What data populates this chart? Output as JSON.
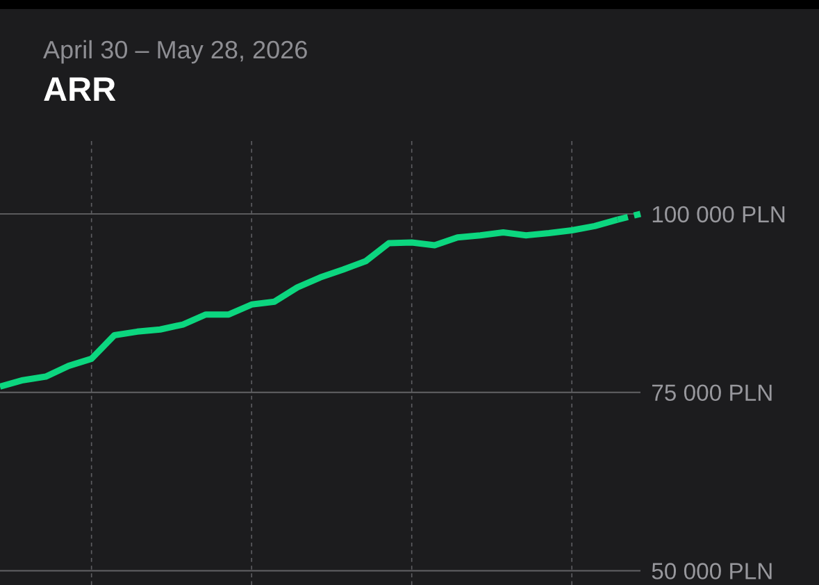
{
  "chart_data": {
    "type": "line",
    "title": "ARR",
    "subtitle": "April 30 – May 28, 2026",
    "categories": [
      null,
      null,
      null,
      null,
      null,
      null,
      null,
      null,
      null,
      null,
      null,
      null,
      null,
      null,
      null,
      null,
      null,
      null,
      null,
      null,
      null,
      null,
      null,
      null,
      null,
      null,
      null,
      null,
      null
    ],
    "series": [
      {
        "color": "#0cd67f",
        "values": [
          75800,
          76700,
          77200,
          78700,
          79700,
          83000,
          83500,
          83800,
          84500,
          85900,
          85900,
          87300,
          87700,
          89700,
          91100,
          92200,
          93400,
          95900,
          96000,
          95600,
          96700,
          97000,
          97400,
          97000,
          97300,
          97700,
          98300,
          99200,
          null
        ]
      },
      {
        "color": "#0cd67f",
        "line_style": "dashed",
        "values": [
          null,
          null,
          null,
          null,
          null,
          null,
          null,
          null,
          null,
          null,
          null,
          null,
          null,
          null,
          null,
          null,
          null,
          null,
          null,
          null,
          null,
          null,
          null,
          null,
          null,
          null,
          null,
          99200,
          100000
        ]
      }
    ],
    "ylim": [
      48000,
      110500
    ],
    "yticks": [
      {
        "value": 50000,
        "label": "50 000 PLN"
      },
      {
        "value": 75000,
        "label": "75 000 PLN"
      },
      {
        "value": 100000,
        "label": "100 000 PLN"
      }
    ],
    "grid": true,
    "tick_labels": "y",
    "line_style": "solid"
  }
}
